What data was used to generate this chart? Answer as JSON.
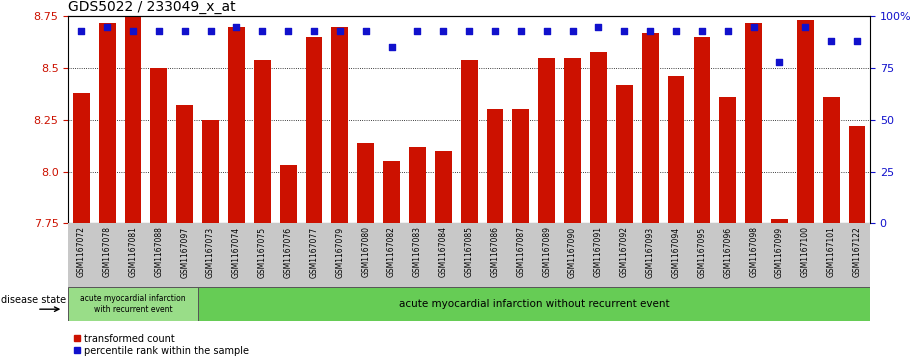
{
  "title": "GDS5022 / 233049_x_at",
  "samples": [
    "GSM1167072",
    "GSM1167078",
    "GSM1167081",
    "GSM1167088",
    "GSM1167097",
    "GSM1167073",
    "GSM1167074",
    "GSM1167075",
    "GSM1167076",
    "GSM1167077",
    "GSM1167079",
    "GSM1167080",
    "GSM1167082",
    "GSM1167083",
    "GSM1167084",
    "GSM1167085",
    "GSM1167086",
    "GSM1167087",
    "GSM1167089",
    "GSM1167090",
    "GSM1167091",
    "GSM1167092",
    "GSM1167093",
    "GSM1167094",
    "GSM1167095",
    "GSM1167096",
    "GSM1167098",
    "GSM1167099",
    "GSM1167100",
    "GSM1167101",
    "GSM1167122"
  ],
  "bar_values": [
    8.38,
    8.72,
    8.75,
    8.5,
    8.32,
    8.25,
    8.7,
    8.54,
    8.03,
    8.65,
    8.7,
    8.14,
    8.05,
    8.12,
    8.1,
    8.54,
    8.3,
    8.3,
    8.55,
    8.55,
    8.58,
    8.42,
    8.67,
    8.46,
    8.65,
    8.36,
    8.72,
    7.77,
    8.73,
    8.36,
    8.22
  ],
  "percentile_values": [
    93,
    95,
    93,
    93,
    93,
    93,
    95,
    93,
    93,
    93,
    93,
    93,
    85,
    93,
    93,
    93,
    93,
    93,
    93,
    93,
    95,
    93,
    93,
    93,
    93,
    93,
    95,
    78,
    95,
    88,
    88
  ],
  "bar_color": "#cc1100",
  "dot_color": "#1111cc",
  "ylim_left": [
    7.75,
    8.75
  ],
  "ylim_right": [
    0,
    100
  ],
  "yticks_left": [
    7.75,
    8.0,
    8.25,
    8.5,
    8.75
  ],
  "yticks_right": [
    0,
    25,
    50,
    75,
    100
  ],
  "grid_values": [
    8.0,
    8.25,
    8.5
  ],
  "bar_width": 0.65,
  "group1_color": "#99dd88",
  "group2_color": "#66cc55",
  "group1_label": "acute myocardial infarction\nwith recurrent event",
  "group2_label": "acute myocardial infarction without recurrent event",
  "disease_state_label": "disease state",
  "legend_red_label": "transformed count",
  "legend_blue_label": "percentile rank within the sample",
  "title_fontsize": 10,
  "tick_fontsize": 8,
  "sample_fontsize": 5.5
}
